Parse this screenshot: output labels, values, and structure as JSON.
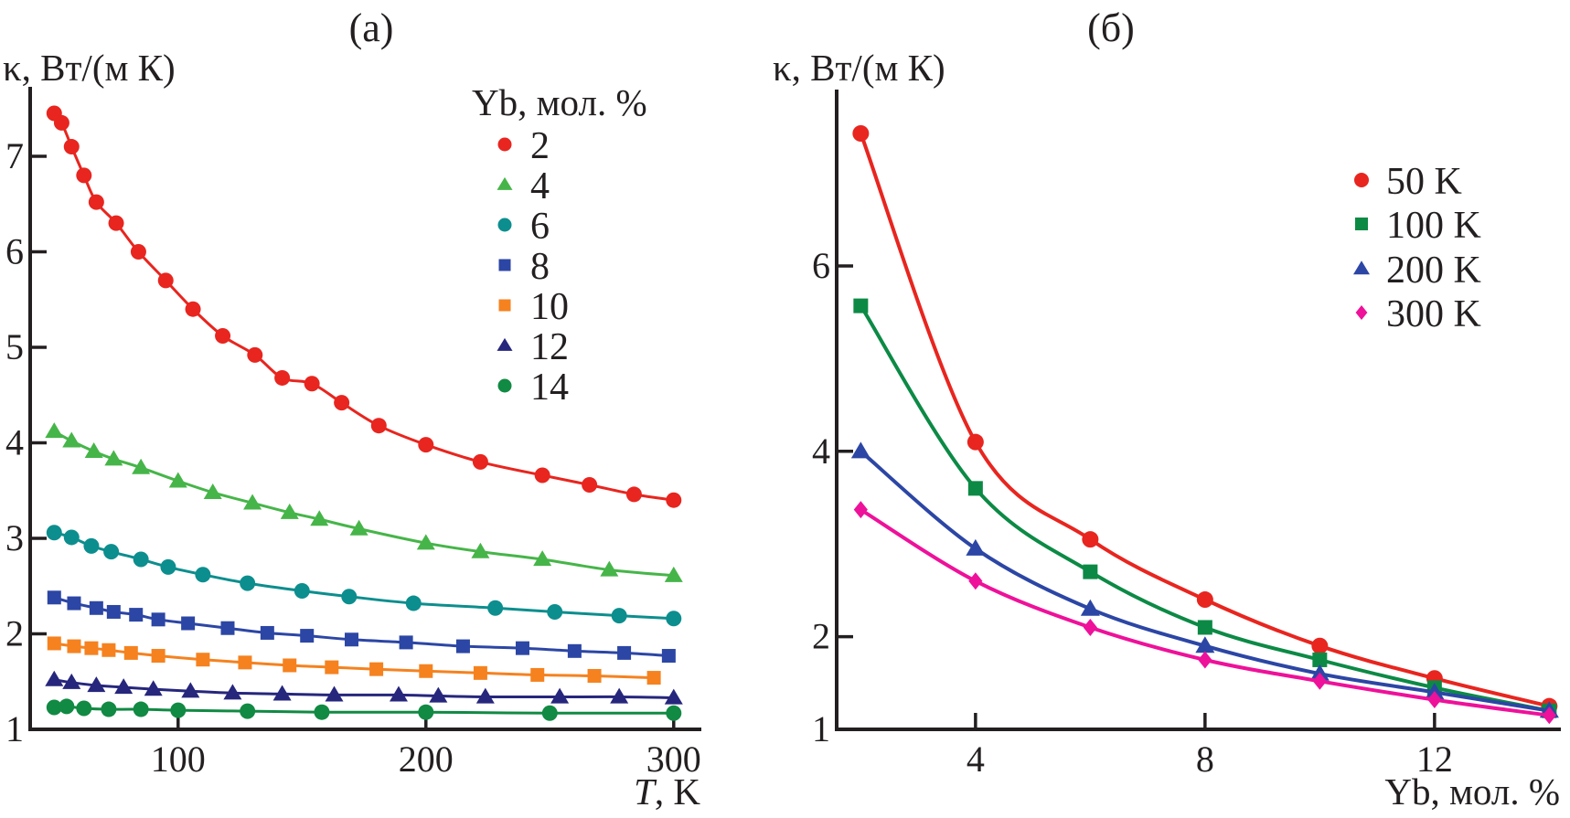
{
  "figure": {
    "background": "#ffffff",
    "panels": [
      {
        "title": "(а)",
        "y_axis_label": "κ, Вт/(м К)",
        "x_label_T": "T",
        "x_label_rest": ", K",
        "legend_title": "Yb, мол. %"
      },
      {
        "title": "(б)",
        "y_axis_label": "κ, Вт/(м К)",
        "x_axis_label": "Yb, мол. %"
      }
    ]
  },
  "chart_data": [
    {
      "type": "line",
      "title": "(а)",
      "xlabel": "T, K",
      "ylabel": "κ, Вт/(м К)",
      "xlim": [
        40.3,
        311
      ],
      "ylim": [
        1,
        7.73
      ],
      "x_ticks": [
        100,
        200,
        300
      ],
      "y_ticks": [
        1,
        2,
        3,
        4,
        5,
        6,
        7
      ],
      "grid": false,
      "legend_title": "Yb, мол. %",
      "legend_position": "upper right",
      "series": [
        {
          "name": "2",
          "color": "#e8251f",
          "marker": "circle",
          "x": [
            50,
            53,
            57,
            62,
            67,
            75,
            84,
            95,
            106,
            118,
            131,
            142,
            154,
            166,
            181,
            200,
            222,
            247,
            266,
            284,
            300
          ],
          "y": [
            7.45,
            7.35,
            7.1,
            6.8,
            6.52,
            6.3,
            6.0,
            5.7,
            5.4,
            5.12,
            4.92,
            4.68,
            4.62,
            4.42,
            4.18,
            3.98,
            3.8,
            3.66,
            3.56,
            3.46,
            3.4
          ]
        },
        {
          "name": "4",
          "color": "#46b549",
          "marker": "triangle",
          "x": [
            50,
            57,
            66,
            74,
            85,
            100,
            114,
            130,
            145,
            157,
            173,
            200,
            222,
            247,
            274,
            300
          ],
          "y": [
            4.12,
            4.02,
            3.91,
            3.83,
            3.74,
            3.6,
            3.48,
            3.37,
            3.27,
            3.2,
            3.1,
            2.95,
            2.86,
            2.78,
            2.67,
            2.61
          ]
        },
        {
          "name": "6",
          "color": "#0c8e8e",
          "marker": "circle",
          "x": [
            50,
            57,
            65,
            73,
            85,
            96,
            110,
            128,
            150,
            169,
            195,
            228,
            252,
            278,
            300
          ],
          "y": [
            3.06,
            3.01,
            2.92,
            2.86,
            2.78,
            2.7,
            2.62,
            2.53,
            2.45,
            2.39,
            2.32,
            2.27,
            2.23,
            2.19,
            2.16
          ]
        },
        {
          "name": "8",
          "color": "#2c46a5",
          "marker": "square",
          "x": [
            50,
            58,
            67,
            74,
            83,
            92,
            104,
            120,
            136,
            152,
            170,
            192,
            215,
            239,
            260,
            280,
            298
          ],
          "y": [
            2.38,
            2.32,
            2.27,
            2.23,
            2.2,
            2.15,
            2.11,
            2.06,
            2.01,
            1.98,
            1.94,
            1.91,
            1.87,
            1.85,
            1.82,
            1.8,
            1.77
          ]
        },
        {
          "name": "10",
          "color": "#f5821f",
          "marker": "square",
          "x": [
            50,
            58,
            65,
            72,
            81,
            92,
            110,
            127,
            145,
            162,
            180,
            200,
            222,
            245,
            268,
            292
          ],
          "y": [
            1.9,
            1.87,
            1.85,
            1.83,
            1.8,
            1.77,
            1.73,
            1.7,
            1.67,
            1.65,
            1.63,
            1.61,
            1.59,
            1.57,
            1.56,
            1.54
          ]
        },
        {
          "name": "12",
          "color": "#26267d",
          "marker": "triangle",
          "x": [
            50,
            57,
            67,
            78,
            90,
            105,
            122,
            142,
            163,
            189,
            205,
            224,
            254,
            278,
            300
          ],
          "y": [
            1.52,
            1.49,
            1.46,
            1.44,
            1.42,
            1.4,
            1.38,
            1.37,
            1.36,
            1.36,
            1.35,
            1.34,
            1.34,
            1.34,
            1.33
          ]
        },
        {
          "name": "14",
          "color": "#118a43",
          "marker": "circle",
          "x": [
            50,
            55,
            62,
            72,
            85,
            100,
            128,
            158,
            200,
            250,
            300
          ],
          "y": [
            1.23,
            1.24,
            1.22,
            1.21,
            1.21,
            1.2,
            1.19,
            1.18,
            1.18,
            1.17,
            1.17
          ]
        }
      ]
    },
    {
      "type": "line",
      "title": "(б)",
      "xlabel": "Yb, мол. %",
      "ylabel": "κ, Вт/(м К)",
      "xlim": [
        1.58,
        14.2
      ],
      "ylim": [
        1,
        7.9
      ],
      "x_ticks": [
        4,
        8,
        12
      ],
      "y_ticks": [
        1,
        2,
        4,
        6
      ],
      "grid": false,
      "legend_position": "upper right",
      "series": [
        {
          "name": "50 K",
          "color": "#e8251f",
          "marker": "circle",
          "x": [
            2,
            4,
            6,
            8,
            10,
            12,
            14
          ],
          "y": [
            7.43,
            4.1,
            3.05,
            2.4,
            1.9,
            1.55,
            1.25
          ]
        },
        {
          "name": "100 K",
          "color": "#0c8a45",
          "marker": "square",
          "x": [
            2,
            4,
            6,
            8,
            10,
            12,
            14
          ],
          "y": [
            5.57,
            3.6,
            2.7,
            2.1,
            1.75,
            1.45,
            1.2
          ]
        },
        {
          "name": "200 K",
          "color": "#2c46a5",
          "marker": "triangle",
          "x": [
            2,
            4,
            6,
            8,
            10,
            12,
            14
          ],
          "y": [
            4.0,
            2.95,
            2.3,
            1.9,
            1.6,
            1.4,
            1.2
          ]
        },
        {
          "name": "300 K",
          "color": "#ee119a",
          "marker": "diamond",
          "x": [
            2,
            4,
            6,
            8,
            10,
            12,
            14
          ],
          "y": [
            3.37,
            2.6,
            2.1,
            1.75,
            1.52,
            1.32,
            1.15
          ]
        }
      ]
    }
  ]
}
